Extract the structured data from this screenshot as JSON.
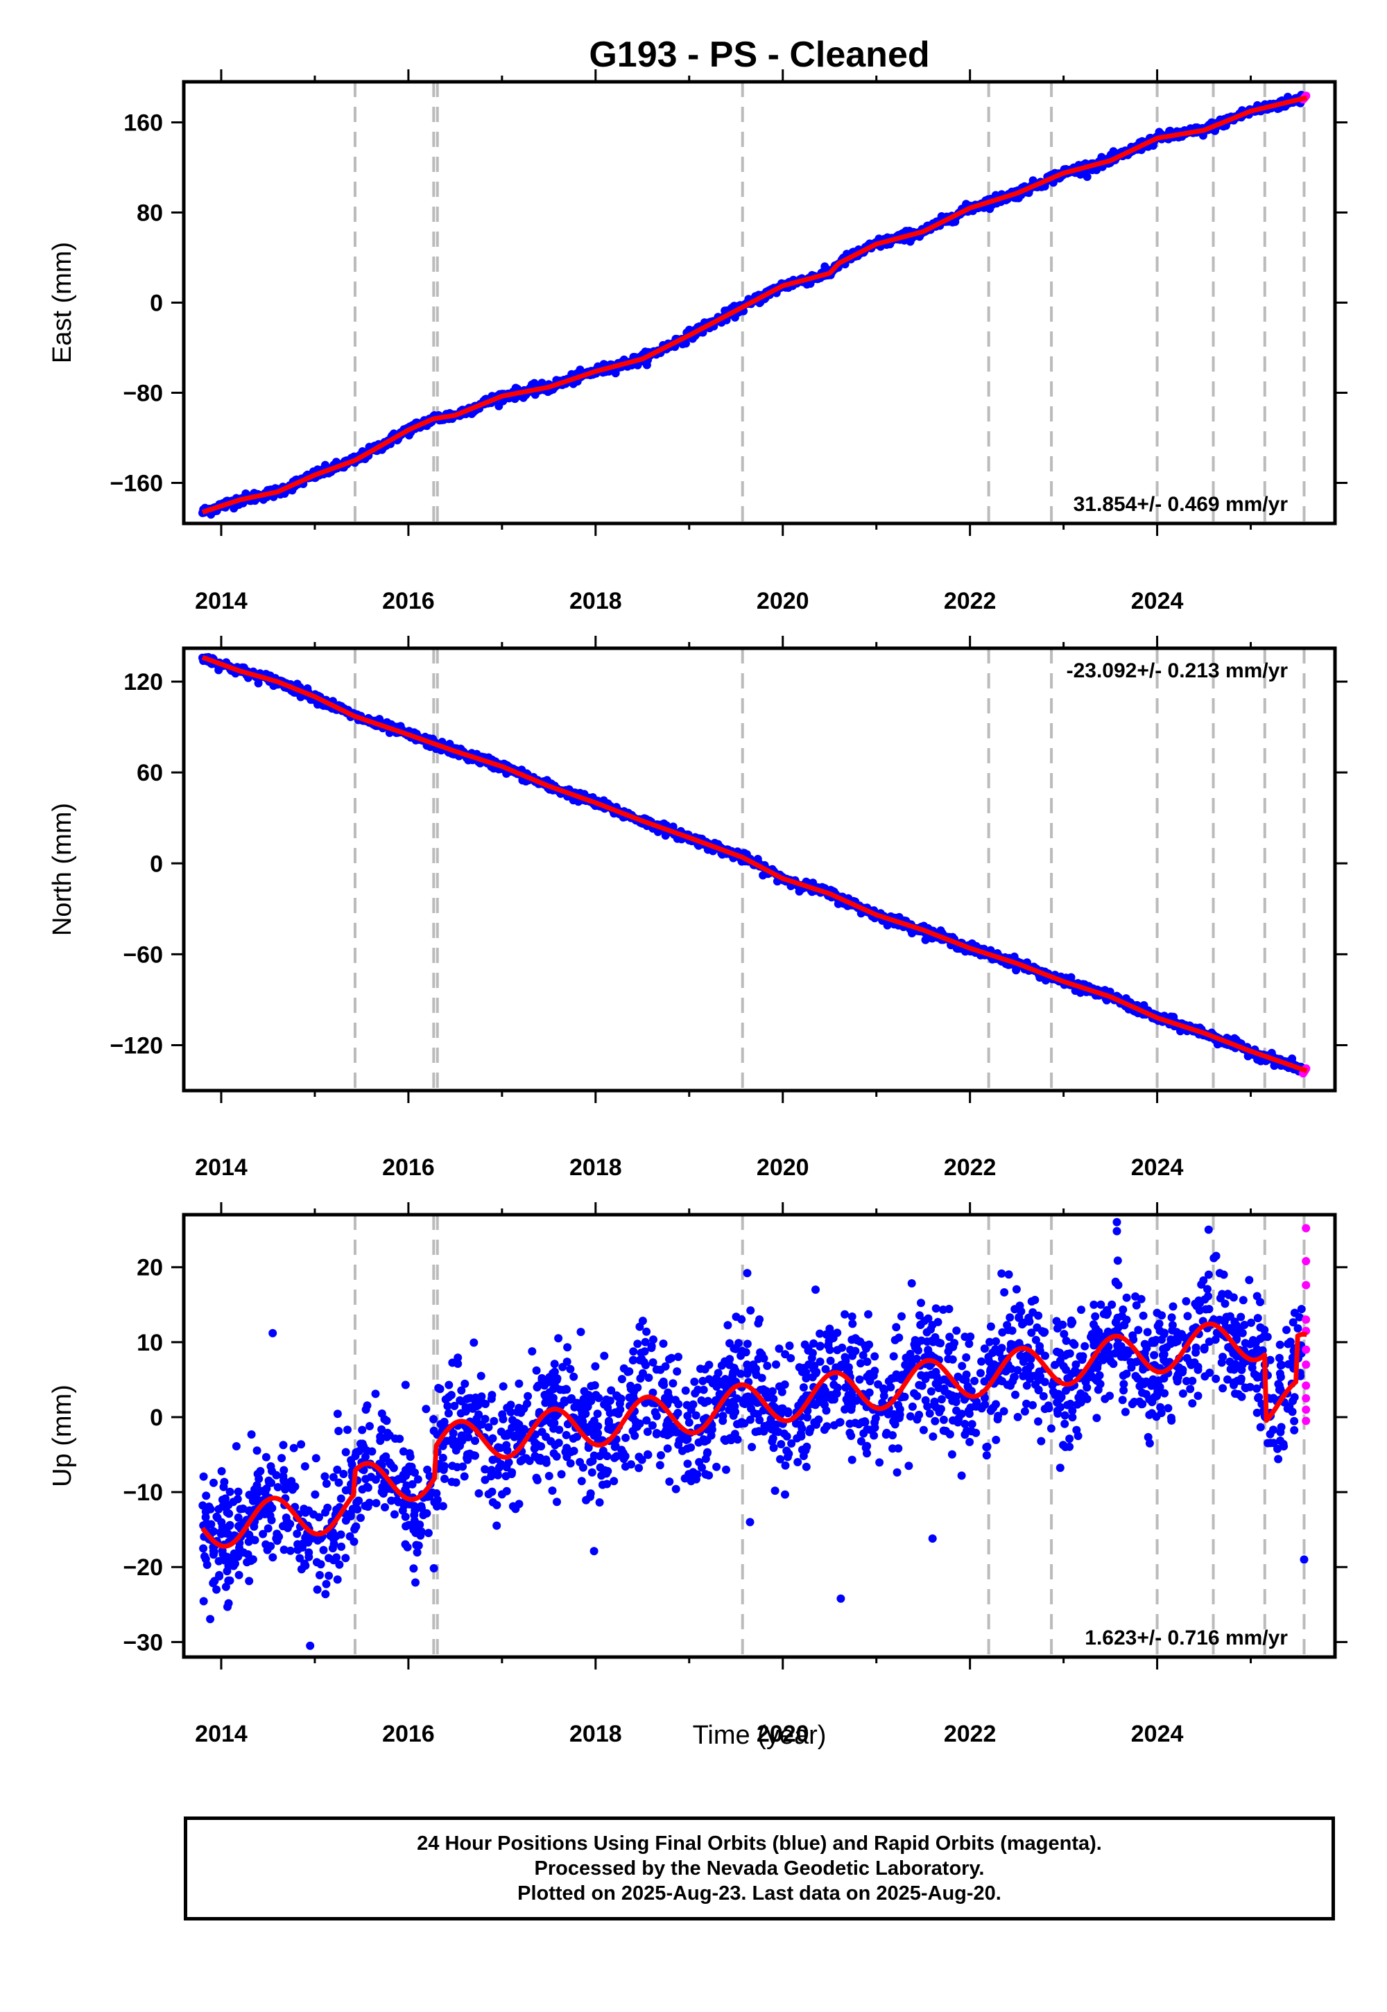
{
  "title": "G193  - PS - Cleaned",
  "xlabel": "Time (year)",
  "x_ticks": [
    "2014",
    "2016",
    "2018",
    "2020",
    "2022",
    "2024"
  ],
  "footer": {
    "line1": "24 Hour Positions Using Final Orbits (blue) and Rapid Orbits (magenta).",
    "line2": "Processed by the Nevada Geodetic Laboratory.",
    "line3": "Plotted on 2025-Aug-23. Last data on 2025-Aug-20."
  },
  "colors": {
    "final_orbits": "#0000ff",
    "rapid_orbits": "#ff00ff",
    "model": "#ff0000",
    "breaks": "#bbbbbb"
  },
  "chart_data": [
    {
      "type": "scatter",
      "ylabel": "East (mm)",
      "xlim": [
        2013.6,
        2025.9
      ],
      "ylim": [
        -196,
        196
      ],
      "yticks": [
        -160,
        -80,
        0,
        80,
        160
      ],
      "xticks": [
        2014,
        2016,
        2018,
        2020,
        2022,
        2024
      ],
      "rate_label": "31.854+/- 0.469 mm/yr",
      "rate_position": "bottom-right",
      "grid": false,
      "breaks": [
        2015.43,
        2016.27,
        2016.31,
        2019.57,
        2022.2,
        2022.87,
        2024.0,
        2024.6,
        2025.15,
        2025.57
      ],
      "trend": [
        [
          2013.8,
          -186
        ],
        [
          2014.2,
          -175
        ],
        [
          2014.6,
          -168
        ],
        [
          2015.0,
          -153
        ],
        [
          2015.43,
          -140
        ],
        [
          2015.6,
          -132
        ],
        [
          2016.0,
          -113
        ],
        [
          2016.27,
          -103
        ],
        [
          2016.5,
          -100
        ],
        [
          2017.0,
          -83
        ],
        [
          2017.5,
          -75
        ],
        [
          2018.0,
          -61
        ],
        [
          2018.5,
          -50
        ],
        [
          2019.0,
          -29
        ],
        [
          2019.57,
          -4
        ],
        [
          2020.0,
          15
        ],
        [
          2020.5,
          26
        ],
        [
          2020.6,
          35
        ],
        [
          2021.0,
          52
        ],
        [
          2021.5,
          63
        ],
        [
          2022.0,
          84
        ],
        [
          2022.5,
          97
        ],
        [
          2023.0,
          115
        ],
        [
          2023.5,
          126
        ],
        [
          2024.0,
          146
        ],
        [
          2024.5,
          153
        ],
        [
          2025.0,
          170
        ],
        [
          2025.6,
          182
        ]
      ]
    },
    {
      "type": "scatter",
      "ylabel": "North (mm)",
      "xlim": [
        2013.6,
        2025.9
      ],
      "ylim": [
        -150,
        142
      ],
      "yticks": [
        -120,
        -60,
        0,
        60,
        120
      ],
      "xticks": [
        2014,
        2016,
        2018,
        2020,
        2022,
        2024
      ],
      "rate_label": "-23.092+/- 0.213 mm/yr",
      "rate_position": "top-right",
      "grid": false,
      "breaks": [
        2015.43,
        2016.27,
        2016.31,
        2019.57,
        2022.2,
        2022.87,
        2024.0,
        2024.6,
        2025.15,
        2025.57
      ],
      "trend": [
        [
          2013.8,
          136
        ],
        [
          2014.2,
          127
        ],
        [
          2014.6,
          120
        ],
        [
          2015.0,
          110
        ],
        [
          2015.43,
          97
        ],
        [
          2016.0,
          85
        ],
        [
          2016.5,
          74
        ],
        [
          2017.0,
          64
        ],
        [
          2017.5,
          51
        ],
        [
          2018.0,
          40
        ],
        [
          2018.5,
          28
        ],
        [
          2019.0,
          17
        ],
        [
          2019.57,
          4
        ],
        [
          2020.0,
          -10
        ],
        [
          2020.5,
          -20
        ],
        [
          2021.0,
          -34
        ],
        [
          2021.5,
          -44
        ],
        [
          2022.0,
          -56
        ],
        [
          2022.5,
          -66
        ],
        [
          2023.0,
          -78
        ],
        [
          2023.5,
          -88
        ],
        [
          2024.0,
          -102
        ],
        [
          2024.5,
          -112
        ],
        [
          2025.0,
          -124
        ],
        [
          2025.6,
          -137
        ]
      ]
    },
    {
      "type": "scatter",
      "ylabel": "Up (mm)",
      "xlabel": "Time (year)",
      "xlim": [
        2013.6,
        2025.9
      ],
      "ylim": [
        -32,
        27
      ],
      "yticks": [
        -30,
        -20,
        -10,
        0,
        10,
        20
      ],
      "xticks": [
        2014,
        2016,
        2018,
        2020,
        2022,
        2024
      ],
      "rate_label": "1.623+/- 0.716 mm/yr",
      "rate_position": "bottom-right",
      "grid": false,
      "breaks": [
        2015.43,
        2016.27,
        2016.31,
        2019.57,
        2022.2,
        2022.87,
        2024.0,
        2024.6,
        2025.15,
        2025.57
      ],
      "trend_rate": 1.623,
      "trend_intercept_2014": -14.5,
      "seasonal_amplitude": 2.8,
      "outliers": [
        [
          2014.55,
          11.2
        ],
        [
          2014.95,
          -30.5
        ],
        [
          2019.62,
          19.2
        ],
        [
          2019.65,
          -14.0
        ],
        [
          2020.35,
          17.0
        ],
        [
          2020.62,
          -24.2
        ],
        [
          2021.6,
          -16.2
        ],
        [
          2023.57,
          26.0
        ],
        [
          2023.57,
          24.8
        ],
        [
          2024.55,
          25.0
        ],
        [
          2024.63,
          21.5
        ],
        [
          2025.57,
          -19.0
        ]
      ],
      "rapid_points": [
        [
          2025.59,
          25.2
        ],
        [
          2025.59,
          20.8
        ],
        [
          2025.59,
          17.6
        ],
        [
          2025.59,
          13.0
        ],
        [
          2025.59,
          11.5
        ],
        [
          2025.59,
          9.0
        ],
        [
          2025.59,
          7.0
        ],
        [
          2025.59,
          4.2
        ],
        [
          2025.59,
          2.5
        ],
        [
          2025.59,
          1.0
        ],
        [
          2025.59,
          -0.5
        ]
      ]
    }
  ]
}
